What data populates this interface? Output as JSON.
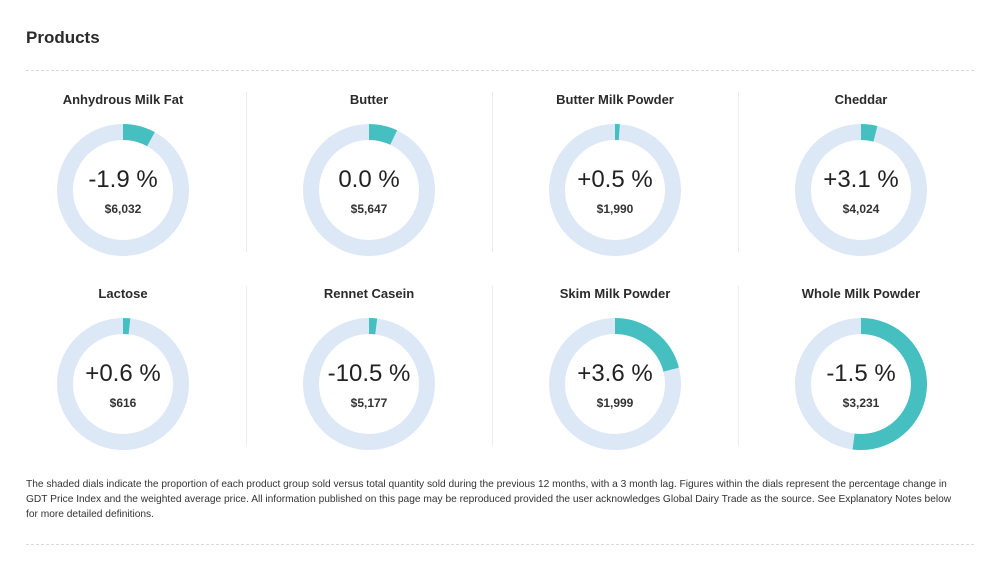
{
  "page": {
    "title": "Products"
  },
  "colors": {
    "track": "#dde8f6",
    "fill": "#45bfc0"
  },
  "products": [
    {
      "name": "Anhydrous Milk Fat",
      "change": "-1.9 %",
      "price": "$6,032",
      "share": 0.08
    },
    {
      "name": "Butter",
      "change": "0.0 %",
      "price": "$5,647",
      "share": 0.07
    },
    {
      "name": "Butter Milk Powder",
      "change": "+0.5 %",
      "price": "$1,990",
      "share": 0.012
    },
    {
      "name": "Cheddar",
      "change": "+3.1 %",
      "price": "$4,024",
      "share": 0.04
    },
    {
      "name": "Lactose",
      "change": "+0.6 %",
      "price": "$616",
      "share": 0.018
    },
    {
      "name": "Rennet Casein",
      "change": "-10.5 %",
      "price": "$5,177",
      "share": 0.02
    },
    {
      "name": "Skim Milk Powder",
      "change": "+3.6 %",
      "price": "$1,999",
      "share": 0.21
    },
    {
      "name": "Whole Milk Powder",
      "change": "-1.5 %",
      "price": "$3,231",
      "share": 0.52
    }
  ],
  "footnote": "The shaded dials indicate the proportion of each product group sold versus total quantity sold during the previous 12 months, with a 3 month lag. Figures within the dials represent the percentage change in GDT Price Index and the weighted average price. All information published on this page may be reproduced provided the user acknowledges Global Dairy Trade as the source. See Explanatory Notes below for more detailed definitions."
}
